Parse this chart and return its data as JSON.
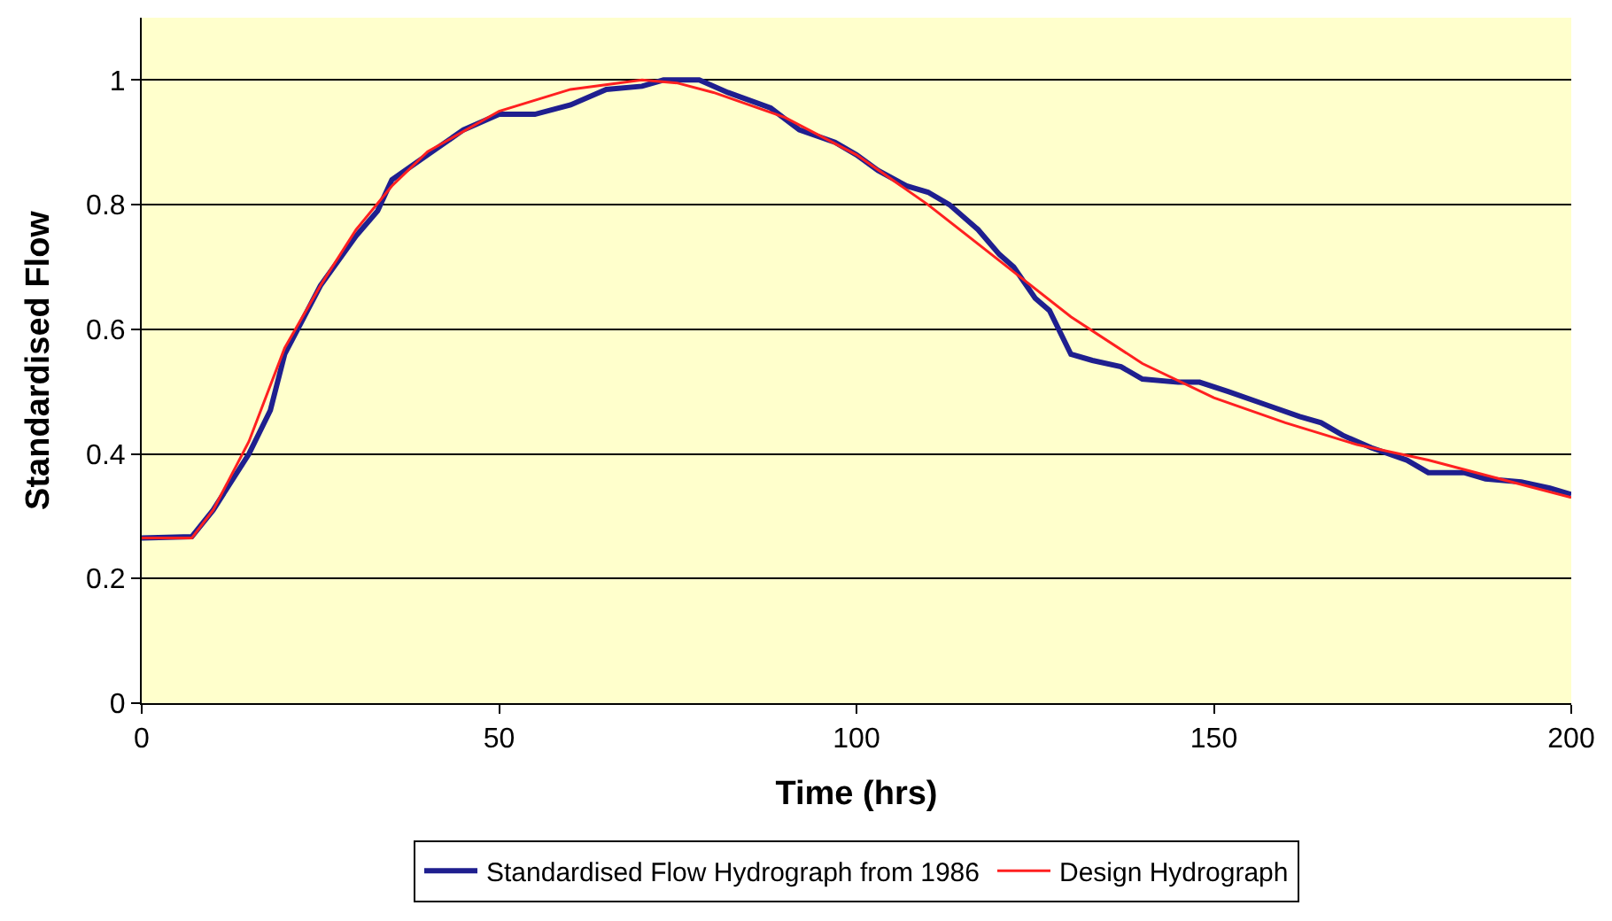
{
  "chart_data": {
    "type": "line",
    "xlabel": "Time (hrs)",
    "ylabel": "Standardised Flow",
    "xlim": [
      0,
      200
    ],
    "xticks": [
      0,
      50,
      100,
      150,
      200
    ],
    "ylim": [
      0,
      1.1
    ],
    "yticks": [
      0,
      0.2,
      0.4,
      0.6,
      0.8,
      1
    ],
    "grid": "y",
    "legend": "bottom",
    "marker": "none",
    "line_style": "solid",
    "series": [
      {
        "name": "Standardised Flow Hydrograph from 1986",
        "color": "#1f1f8f",
        "x": [
          0,
          7,
          10,
          15,
          18,
          20,
          25,
          30,
          33,
          35,
          40,
          45,
          50,
          55,
          60,
          65,
          70,
          73,
          78,
          82,
          88,
          92,
          97,
          100,
          103,
          107,
          110,
          113,
          117,
          120,
          122,
          125,
          127,
          130,
          133,
          137,
          140,
          145,
          148,
          152,
          157,
          162,
          165,
          168,
          172,
          177,
          180,
          185,
          188,
          193,
          197,
          200
        ],
        "values": [
          0.265,
          0.267,
          0.31,
          0.4,
          0.47,
          0.56,
          0.67,
          0.75,
          0.79,
          0.84,
          0.88,
          0.92,
          0.945,
          0.945,
          0.96,
          0.985,
          0.99,
          1.0,
          1.0,
          0.98,
          0.955,
          0.92,
          0.9,
          0.88,
          0.855,
          0.83,
          0.82,
          0.8,
          0.76,
          0.72,
          0.7,
          0.65,
          0.63,
          0.56,
          0.55,
          0.54,
          0.52,
          0.515,
          0.515,
          0.5,
          0.48,
          0.46,
          0.45,
          0.43,
          0.41,
          0.39,
          0.37,
          0.37,
          0.36,
          0.355,
          0.345,
          0.335
        ]
      },
      {
        "name": "Design Hydrograph",
        "color": "#ff2020",
        "x": [
          0,
          7,
          10,
          15,
          20,
          25,
          30,
          35,
          40,
          50,
          60,
          70,
          75,
          80,
          90,
          100,
          110,
          120,
          130,
          140,
          150,
          160,
          170,
          180,
          190,
          200
        ],
        "values": [
          0.265,
          0.265,
          0.31,
          0.42,
          0.57,
          0.67,
          0.76,
          0.83,
          0.885,
          0.95,
          0.985,
          1.0,
          0.995,
          0.98,
          0.94,
          0.88,
          0.8,
          0.71,
          0.62,
          0.545,
          0.49,
          0.45,
          0.415,
          0.39,
          0.36,
          0.33
        ]
      }
    ]
  }
}
